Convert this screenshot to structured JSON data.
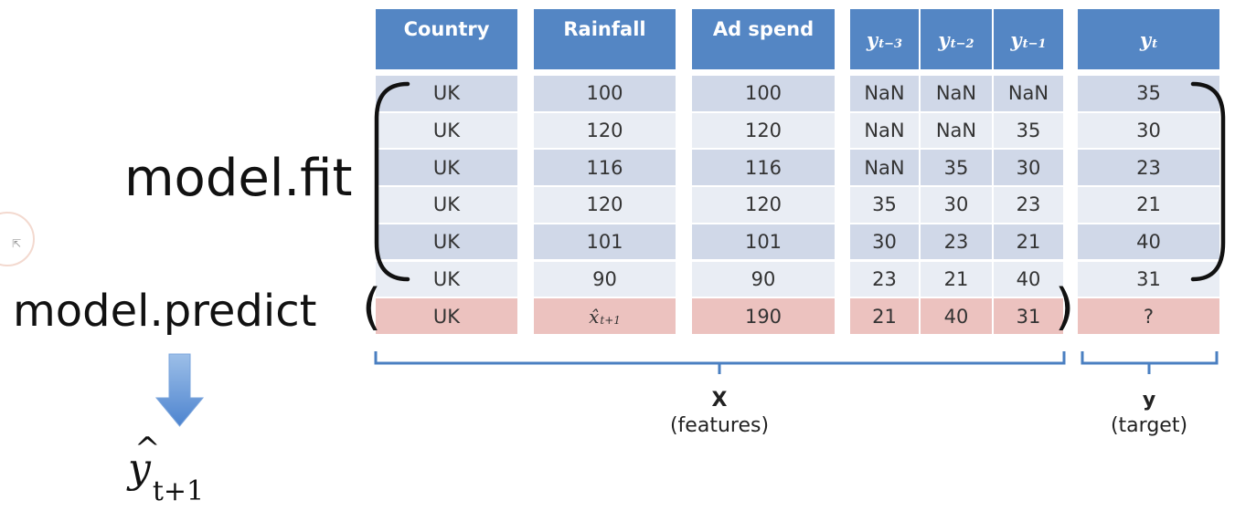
{
  "table": {
    "headers": {
      "country": "Country",
      "rainfall": "Rainfall",
      "adspend": "Ad spend",
      "y3": {
        "base": "y",
        "sub": "t−3"
      },
      "y2": {
        "base": "y",
        "sub": "t−2"
      },
      "y1": {
        "base": "y",
        "sub": "t−1"
      },
      "yt": {
        "base": "y",
        "sub": "t"
      }
    },
    "rows": [
      {
        "country": "UK",
        "rainfall": "100",
        "adspend": "100",
        "y3": "NaN",
        "y2": "NaN",
        "y1": "NaN",
        "yt": "35"
      },
      {
        "country": "UK",
        "rainfall": "120",
        "adspend": "120",
        "y3": "NaN",
        "y2": "NaN",
        "y1": "35",
        "yt": "30"
      },
      {
        "country": "UK",
        "rainfall": "116",
        "adspend": "116",
        "y3": "NaN",
        "y2": "35",
        "y1": "30",
        "yt": "23"
      },
      {
        "country": "UK",
        "rainfall": "120",
        "adspend": "120",
        "y3": "35",
        "y2": "30",
        "y1": "23",
        "yt": "21"
      },
      {
        "country": "UK",
        "rainfall": "101",
        "adspend": "101",
        "y3": "30",
        "y2": "23",
        "y1": "21",
        "yt": "40"
      },
      {
        "country": "UK",
        "rainfall": "90",
        "adspend": "90",
        "y3": "23",
        "y2": "21",
        "y1": "40",
        "yt": "31"
      }
    ],
    "predict_row": {
      "country": "UK",
      "rainfall": {
        "base": "x̂",
        "sub": "t+1"
      },
      "adspend": "190",
      "y3": "21",
      "y2": "40",
      "y1": "31",
      "yt": "?"
    }
  },
  "code": {
    "fit": "model.fit",
    "predict": "model.predict",
    "open_paren": "(",
    "close_paren": ")"
  },
  "labels": {
    "x_title": "X",
    "x_sub": "(features)",
    "y_title": "y",
    "y_sub": "(target)"
  },
  "output": {
    "base": "y",
    "sub": "t+1"
  },
  "colors": {
    "header": "#5486c4",
    "row_dark": "#d0d8e8",
    "row_light": "#e9edf4",
    "predict": "#ecc2bf",
    "bracket": "#4a7fc1",
    "arrow": "#5b8fd4"
  }
}
